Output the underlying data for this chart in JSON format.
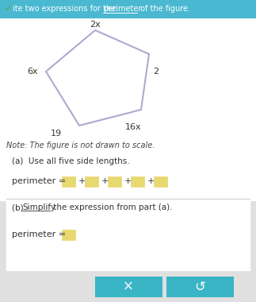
{
  "note_text": "Note: The figure is not drawn to scale.",
  "part_a_label": "(a)  Use all five side lengths.",
  "part_b_label_pre": "(b)  ",
  "part_b_simplify": "Simplify",
  "part_b_label_post": " the expression from part (a).",
  "perimeter_a_text": "perimeter = ",
  "perimeter_b_text": "perimeter = ",
  "side_labels": [
    "2x",
    "6x",
    "2",
    "16x",
    "19"
  ],
  "header_bg": "#4ab8d0",
  "check_color": "#50b050",
  "font_color": "#333333",
  "page_bg": "#e0e0e0",
  "white_bg": "#ffffff",
  "pentagon_color": "#b0a8d0",
  "input_box_color": "#e8d870",
  "input_box_edge": "#ccaa00",
  "button_color": "#3ab5c6",
  "divider_color": "#cccccc",
  "header_text": "ite two expressions for the ",
  "header_underline": "perimeter",
  "header_end": " of the figure."
}
